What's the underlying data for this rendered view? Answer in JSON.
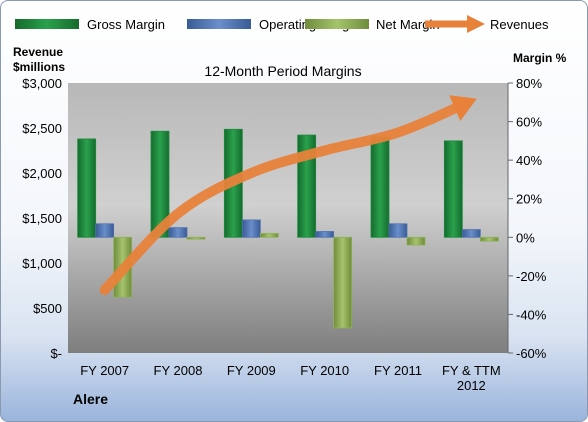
{
  "colors": {
    "gross": "#1e8a3e",
    "operating": "#4f72ad",
    "net": "#8fb05a",
    "revenues": "#e8823a"
  },
  "chart_data": {
    "type": "bar",
    "title": "12-Month Period Margins",
    "categories": [
      "FY 2007",
      "FY 2008",
      "FY 2009",
      "FY 2010",
      "FY 2011",
      "FY & TTM 2012"
    ],
    "series": [
      {
        "name": "Gross Margin",
        "type": "bar",
        "axis": "right",
        "values": [
          51,
          55,
          56,
          53,
          52,
          50
        ]
      },
      {
        "name": "Operating Margin",
        "type": "bar",
        "axis": "right",
        "values": [
          7,
          5,
          9,
          3,
          7,
          4
        ]
      },
      {
        "name": "Net Margin",
        "type": "bar",
        "axis": "right",
        "values": [
          -31,
          -1,
          2,
          -47,
          -4,
          -2
        ]
      },
      {
        "name": "Revenues",
        "type": "line-arrow",
        "axis": "left",
        "values": [
          700,
          1550,
          2000,
          2250,
          2450,
          2800
        ]
      }
    ],
    "left_axis": {
      "title_line1": "Revenue",
      "title_line2": "$millions",
      "range": [
        0,
        3000
      ],
      "tick_values": [
        0,
        500,
        1000,
        1500,
        2000,
        2500,
        3000
      ],
      "tick_labels": [
        "$-",
        "$500",
        "$1,000",
        "$1,500",
        "$2,000",
        "$2,500",
        "$3,000"
      ]
    },
    "right_axis": {
      "title": "Margin %",
      "range": [
        -60,
        80
      ],
      "tick_values": [
        -60,
        -40,
        -20,
        0,
        20,
        40,
        60,
        80
      ],
      "tick_labels": [
        "-60%",
        "-40%",
        "-20%",
        "0%",
        "20%",
        "40%",
        "60%",
        "80%"
      ]
    },
    "x_labels": [
      [
        "FY 2007"
      ],
      [
        "FY 2008"
      ],
      [
        "FY 2009"
      ],
      [
        "FY 2010"
      ],
      [
        "FY 2011"
      ],
      [
        "FY & TTM",
        "2012"
      ]
    ],
    "legend_position": "top",
    "grid": false
  },
  "footer_label": "Alere"
}
